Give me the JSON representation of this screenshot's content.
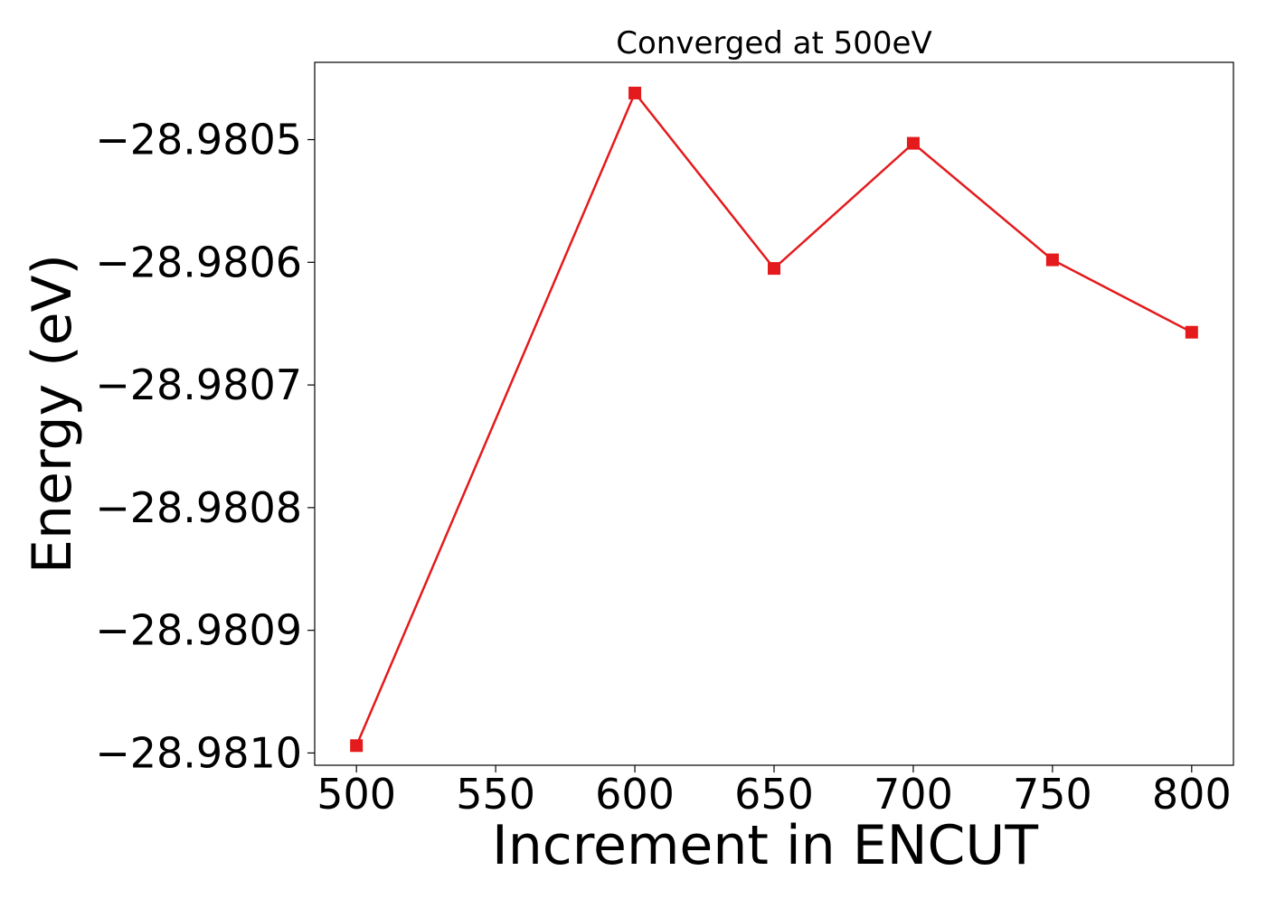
{
  "chart_data": {
    "type": "line",
    "title": "Converged at 500eV",
    "xlabel": "Increment in ENCUT",
    "ylabel": "Energy (eV)",
    "xlim": [
      485,
      815
    ],
    "ylim": [
      -28.98101,
      -28.980437
    ],
    "x_ticks": [
      500,
      550,
      600,
      650,
      700,
      750,
      800
    ],
    "x_tick_labels": [
      "500",
      "550",
      "600",
      "650",
      "700",
      "750",
      "800"
    ],
    "y_ticks": [
      -28.9805,
      -28.9806,
      -28.9807,
      -28.9808,
      -28.9809,
      -28.981
    ],
    "y_tick_labels": [
      "−28.9805",
      "−28.9806",
      "−28.9807",
      "−28.9808",
      "−28.9809",
      "−28.9810"
    ],
    "grid": false,
    "legend": false,
    "series": [
      {
        "color": "#e41a1c",
        "marker": "square",
        "x": [
          500,
          600,
          650,
          700,
          750,
          800
        ],
        "y": [
          -28.980994,
          -28.980462,
          -28.980605,
          -28.980503,
          -28.980598,
          -28.980657
        ]
      }
    ]
  }
}
